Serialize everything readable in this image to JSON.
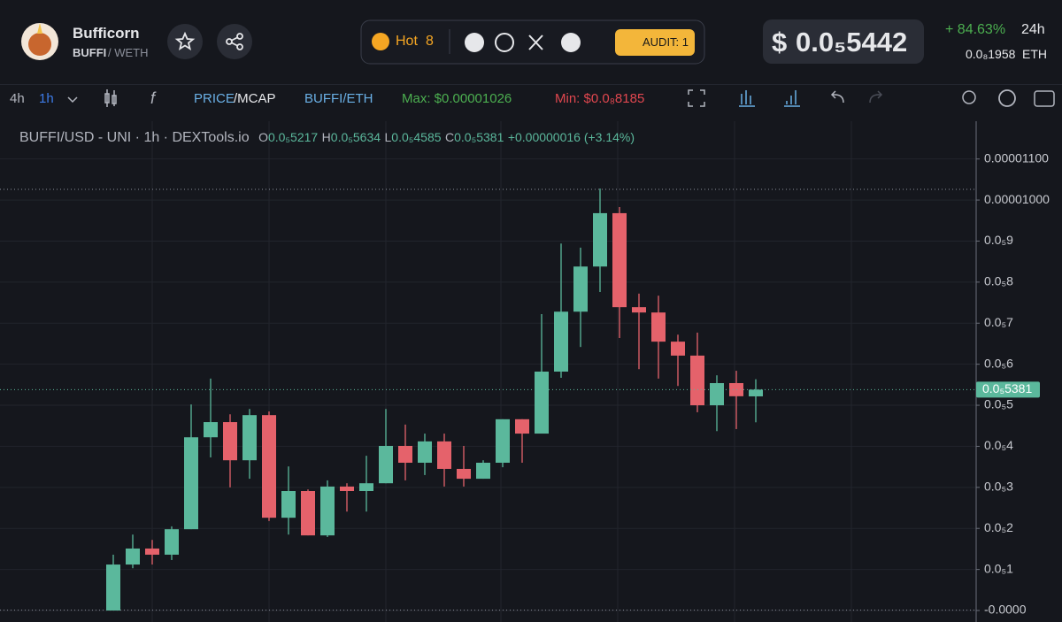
{
  "header": {
    "name": "Bufficorn",
    "base": "BUFFI",
    "quote": "/ WETH",
    "hot": "Hot",
    "hot_rank": "8",
    "audit": "AUDIT: 1",
    "currency": "$",
    "price": "0.0₅5442",
    "change": "+ 84.63%",
    "period": "24h",
    "eth_price": "0.0₈1958",
    "eth": "ETH"
  },
  "toolbar": {
    "interval_a": "4h",
    "interval_b": "1h",
    "price": "PRICE",
    "mcap": "/MCAP",
    "pair": "BUFFI/ETH"
  },
  "legend": {
    "title": "BUFFI/USD - UNI · 1h · DEXTools.io",
    "o_key": "O",
    "o": "0.0₅5217",
    "h_key": "H",
    "h": "0.0₅5634",
    "l_key": "L",
    "l": "0.0₅4585",
    "c_key": "C",
    "c": "0.0₅5381",
    "change": "+0.00000016 (+3.14%)"
  },
  "chart_data": {
    "type": "candlestick",
    "up_color": "#5bb89c",
    "down_color": "#e5626b",
    "grid": true,
    "ylim": [
      -2.8e-07,
      1.192e-05
    ],
    "yticks": [
      {
        "value": 1.1e-05,
        "label": "0.00001100"
      },
      {
        "value": 1e-05,
        "label": "0.00001000"
      },
      {
        "value": 9e-06,
        "label": "0.0₅9"
      },
      {
        "value": 8e-06,
        "label": "0.0₅8"
      },
      {
        "value": 7e-06,
        "label": "0.0₅7"
      },
      {
        "value": 6e-06,
        "label": "0.0₅6"
      },
      {
        "value": 5e-06,
        "label": "0.0₅5"
      },
      {
        "value": 4e-06,
        "label": "0.0₅4"
      },
      {
        "value": 3e-06,
        "label": "0.0₅3"
      },
      {
        "value": 2e-06,
        "label": "0.0₅2"
      },
      {
        "value": 1e-06,
        "label": "0.0₅1"
      },
      {
        "value": 0,
        "label": "-0.0000"
      }
    ],
    "max": {
      "value": 1.026e-05,
      "label": "Max: $0.00001026"
    },
    "min": {
      "value": 8.185e-09,
      "label": "Min: $0.0₈8185"
    },
    "last_label": "0.0₅5381",
    "candles": [
      {
        "o": 0.0,
        "h": 1.36e-06,
        "l": 0.0,
        "c": 1.12e-06
      },
      {
        "o": 1.12e-06,
        "h": 1.85e-06,
        "l": 1.03e-06,
        "c": 1.51e-06
      },
      {
        "o": 1.51e-06,
        "h": 1.72e-06,
        "l": 1.12e-06,
        "c": 1.36e-06
      },
      {
        "o": 1.36e-06,
        "h": 2.05e-06,
        "l": 1.23e-06,
        "c": 1.98e-06
      },
      {
        "o": 1.98e-06,
        "h": 5.02e-06,
        "l": 1.98e-06,
        "c": 4.22e-06
      },
      {
        "o": 4.22e-06,
        "h": 5.65e-06,
        "l": 3.73e-06,
        "c": 4.59e-06
      },
      {
        "o": 4.59e-06,
        "h": 4.78e-06,
        "l": 3e-06,
        "c": 3.66e-06
      },
      {
        "o": 3.66e-06,
        "h": 4.91e-06,
        "l": 3.21e-06,
        "c": 4.76e-06
      },
      {
        "o": 4.76e-06,
        "h": 4.85e-06,
        "l": 2.18e-06,
        "c": 2.26e-06
      },
      {
        "o": 2.26e-06,
        "h": 3.51e-06,
        "l": 1.85e-06,
        "c": 2.91e-06
      },
      {
        "o": 2.91e-06,
        "h": 2.95e-06,
        "l": 1.83e-06,
        "c": 1.83e-06
      },
      {
        "o": 1.83e-06,
        "h": 3.17e-06,
        "l": 1.79e-06,
        "c": 3.02e-06
      },
      {
        "o": 3.02e-06,
        "h": 3.1e-06,
        "l": 2.41e-06,
        "c": 2.91e-06
      },
      {
        "o": 2.91e-06,
        "h": 3.77e-06,
        "l": 2.41e-06,
        "c": 3.1e-06
      },
      {
        "o": 3.1e-06,
        "h": 4.91e-06,
        "l": 3.1e-06,
        "c": 4.01e-06
      },
      {
        "o": 4.01e-06,
        "h": 4.53e-06,
        "l": 3.17e-06,
        "c": 3.6e-06
      },
      {
        "o": 3.6e-06,
        "h": 4.31e-06,
        "l": 3.3e-06,
        "c": 4.12e-06
      },
      {
        "o": 4.12e-06,
        "h": 4.31e-06,
        "l": 3.02e-06,
        "c": 3.45e-06
      },
      {
        "o": 3.45e-06,
        "h": 4.01e-06,
        "l": 3.02e-06,
        "c": 3.21e-06
      },
      {
        "o": 3.21e-06,
        "h": 3.66e-06,
        "l": 3.21e-06,
        "c": 3.6e-06
      },
      {
        "o": 3.6e-06,
        "h": 4.66e-06,
        "l": 3.49e-06,
        "c": 4.66e-06
      },
      {
        "o": 4.66e-06,
        "h": 4.66e-06,
        "l": 3.6e-06,
        "c": 4.31e-06
      },
      {
        "o": 4.31e-06,
        "h": 7.22e-06,
        "l": 4.31e-06,
        "c": 5.82e-06
      },
      {
        "o": 5.82e-06,
        "h": 8.94e-06,
        "l": 5.67e-06,
        "c": 7.28e-06
      },
      {
        "o": 7.28e-06,
        "h": 8.84e-06,
        "l": 6.42e-06,
        "c": 8.38e-06
      },
      {
        "o": 8.38e-06,
        "h": 1.028e-05,
        "l": 7.76e-06,
        "c": 9.68e-06
      },
      {
        "o": 9.68e-06,
        "h": 9.83e-06,
        "l": 6.64e-06,
        "c": 7.39e-06
      },
      {
        "o": 7.39e-06,
        "h": 7.72e-06,
        "l": 5.88e-06,
        "c": 7.26e-06
      },
      {
        "o": 7.26e-06,
        "h": 7.67e-06,
        "l": 5.65e-06,
        "c": 6.55e-06
      },
      {
        "o": 6.55e-06,
        "h": 6.72e-06,
        "l": 5.47e-06,
        "c": 6.21e-06
      },
      {
        "o": 6.21e-06,
        "h": 6.77e-06,
        "l": 4.83e-06,
        "c": 5e-06
      },
      {
        "o": 5e-06,
        "h": 5.73e-06,
        "l": 4.37e-06,
        "c": 5.54e-06
      },
      {
        "o": 5.54e-06,
        "h": 5.84e-06,
        "l": 4.42e-06,
        "c": 5.22e-06
      },
      {
        "o": 5.217e-06,
        "h": 5.634e-06,
        "l": 4.585e-06,
        "c": 5.381e-06
      }
    ]
  }
}
